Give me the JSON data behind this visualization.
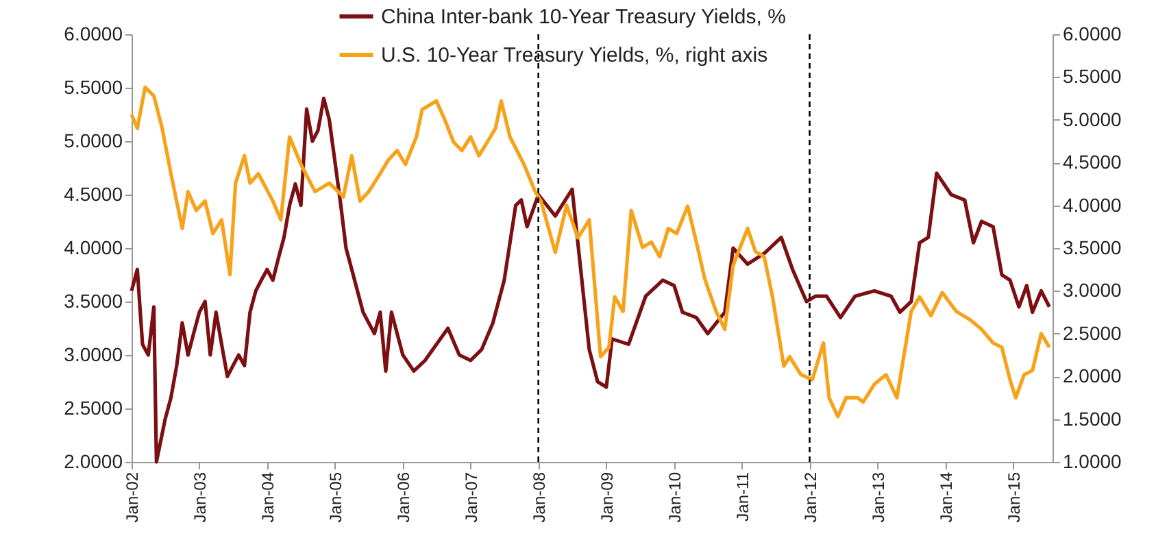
{
  "chart_data": {
    "type": "line",
    "xlim": [
      "2002-01",
      "2015-08"
    ],
    "xticks": [
      {
        "value": "2002-01",
        "label": "Jan-02"
      },
      {
        "value": "2003-01",
        "label": "Jan-03"
      },
      {
        "value": "2004-01",
        "label": "Jan-04"
      },
      {
        "value": "2005-01",
        "label": "Jan-05"
      },
      {
        "value": "2006-01",
        "label": "Jan-06"
      },
      {
        "value": "2007-01",
        "label": "Jan-07"
      },
      {
        "value": "2008-01",
        "label": "Jan-08"
      },
      {
        "value": "2009-01",
        "label": "Jan-09"
      },
      {
        "value": "2010-01",
        "label": "Jan-10"
      },
      {
        "value": "2011-01",
        "label": "Jan-11"
      },
      {
        "value": "2012-01",
        "label": "Jan-12"
      },
      {
        "value": "2013-01",
        "label": "Jan-13"
      },
      {
        "value": "2014-01",
        "label": "Jan-14"
      },
      {
        "value": "2015-01",
        "label": "Jan-15"
      }
    ],
    "ylim": [
      2,
      6
    ],
    "yticks": [
      {
        "value": 2,
        "label": "2.0000"
      },
      {
        "value": 2.5,
        "label": "2.5000"
      },
      {
        "value": 3,
        "label": "3.0000"
      },
      {
        "value": 3.5,
        "label": "3.5000"
      },
      {
        "value": 4,
        "label": "4.0000"
      },
      {
        "value": 4.5,
        "label": "4.5000"
      },
      {
        "value": 5,
        "label": "5.0000"
      },
      {
        "value": 5.5,
        "label": "5.5000"
      },
      {
        "value": 6,
        "label": "6.0000"
      }
    ],
    "y2lim": [
      1,
      6
    ],
    "y2ticks": [
      {
        "value": 1,
        "label": "1.0000"
      },
      {
        "value": 1.5,
        "label": "1.5000"
      },
      {
        "value": 2,
        "label": "2.0000"
      },
      {
        "value": 2.5,
        "label": "2.5000"
      },
      {
        "value": 3,
        "label": "3.0000"
      },
      {
        "value": 3.5,
        "label": "3.5000"
      },
      {
        "value": 4,
        "label": "4.0000"
      },
      {
        "value": 4.5,
        "label": "4.5000"
      },
      {
        "value": 5,
        "label": "5.0000"
      },
      {
        "value": 5.5,
        "label": "5.5000"
      },
      {
        "value": 6,
        "label": "6.0000"
      }
    ],
    "legend": "top",
    "grid": false,
    "line_style": "solid",
    "ref_lines": [
      {
        "axis": "x",
        "value": "2008-01",
        "line_style": "dashed",
        "color": "#000000"
      },
      {
        "axis": "x",
        "value": "2012-01",
        "line_style": "dashed",
        "color": "#000000"
      }
    ],
    "series": [
      {
        "name": "China Inter-bank 10-Year Treasury Yields, %",
        "color": "#7b0f12",
        "x": [
          "2002-01-01",
          "2002-02-01",
          "2002-03-01",
          "2002-04-01",
          "2002-05-01",
          "2002-05-15",
          "2002-07-01",
          "2002-08-01",
          "2002-09-01",
          "2002-10-01",
          "2002-11-01",
          "2002-12-01",
          "2003-01-01",
          "2003-02-01",
          "2003-03-01",
          "2003-04-01",
          "2003-05-01",
          "2003-06-01",
          "2003-07-01",
          "2003-08-01",
          "2003-09-01",
          "2003-10-01",
          "2003-11-01",
          "2003-12-01",
          "2004-01-01",
          "2004-02-01",
          "2004-03-01",
          "2004-04-01",
          "2004-05-01",
          "2004-06-01",
          "2004-07-01",
          "2004-08-01",
          "2004-09-01",
          "2004-10-01",
          "2004-11-01",
          "2004-12-01",
          "2005-01-01",
          "2005-02-01",
          "2005-03-01",
          "2005-04-01",
          "2005-06-01",
          "2005-08-01",
          "2005-09-01",
          "2005-10-01",
          "2005-11-01",
          "2006-01-01",
          "2006-03-01",
          "2006-05-01",
          "2006-07-01",
          "2006-09-01",
          "2006-11-01",
          "2007-01-01",
          "2007-03-01",
          "2007-05-01",
          "2007-07-01",
          "2007-09-01",
          "2007-10-01",
          "2007-11-01",
          "2008-01-01",
          "2008-04-01",
          "2008-07-01",
          "2008-10-01",
          "2008-11-15",
          "2009-01-01",
          "2009-02-01",
          "2009-05-01",
          "2009-08-01",
          "2009-11-01",
          "2010-01-01",
          "2010-02-15",
          "2010-05-01",
          "2010-07-01",
          "2010-10-01",
          "2010-11-15",
          "2011-02-01",
          "2011-05-01",
          "2011-08-01",
          "2011-10-01",
          "2011-12-15",
          "2012-02-01",
          "2012-04-01",
          "2012-06-15",
          "2012-09-01",
          "2012-12-15",
          "2013-03-15",
          "2013-05-01",
          "2013-07-01",
          "2013-08-15",
          "2013-10-01",
          "2013-11-15",
          "2014-02-01",
          "2014-04-15",
          "2014-06-01",
          "2014-07-15",
          "2014-09-15",
          "2014-11-01",
          "2014-12-15",
          "2015-02-01",
          "2015-03-15",
          "2015-04-15",
          "2015-06-01",
          "2015-07-15"
        ],
        "values": [
          3.6,
          3.8,
          3.1,
          3.0,
          3.45,
          2.0,
          2.4,
          2.6,
          2.9,
          3.3,
          3.0,
          3.2,
          3.4,
          3.5,
          3.0,
          3.4,
          3.1,
          2.8,
          2.9,
          3.0,
          2.9,
          3.4,
          3.6,
          3.7,
          3.8,
          3.7,
          3.9,
          4.1,
          4.4,
          4.6,
          4.4,
          5.3,
          5.0,
          5.1,
          5.4,
          5.2,
          4.8,
          4.4,
          4.0,
          3.8,
          3.4,
          3.2,
          3.4,
          2.85,
          3.4,
          3.0,
          2.85,
          2.95,
          3.1,
          3.25,
          3.0,
          2.95,
          3.05,
          3.3,
          3.7,
          4.4,
          4.45,
          4.2,
          4.5,
          4.3,
          4.55,
          3.05,
          2.75,
          2.7,
          3.15,
          3.1,
          3.55,
          3.7,
          3.65,
          3.4,
          3.35,
          3.2,
          3.4,
          4.0,
          3.85,
          3.95,
          4.1,
          3.8,
          3.5,
          3.55,
          3.55,
          3.35,
          3.55,
          3.6,
          3.55,
          3.4,
          3.5,
          4.05,
          4.1,
          4.7,
          4.5,
          4.45,
          4.05,
          4.25,
          4.2,
          3.75,
          3.7,
          3.45,
          3.65,
          3.4,
          3.6,
          3.45
        ]
      },
      {
        "name": "U.S. 10-Year Treasury Yields, %, right axis",
        "color": "#f7a21b",
        "axis": "y2",
        "x": [
          "2002-01-01",
          "2002-02-01",
          "2002-03-15",
          "2002-05-01",
          "2002-06-15",
          "2002-08-01",
          "2002-10-01",
          "2002-11-01",
          "2002-12-15",
          "2003-02-01",
          "2003-03-15",
          "2003-05-01",
          "2003-06-15",
          "2003-07-15",
          "2003-09-01",
          "2003-10-01",
          "2003-11-15",
          "2004-02-01",
          "2004-03-15",
          "2004-05-01",
          "2004-07-01",
          "2004-09-15",
          "2004-12-01",
          "2005-02-15",
          "2005-04-01",
          "2005-05-15",
          "2005-07-01",
          "2005-09-01",
          "2005-10-15",
          "2005-12-01",
          "2006-01-15",
          "2006-03-15",
          "2006-04-15",
          "2006-07-01",
          "2006-08-15",
          "2006-10-01",
          "2006-11-15",
          "2007-01-01",
          "2007-02-15",
          "2007-04-01",
          "2007-05-15",
          "2007-06-15",
          "2007-08-01",
          "2007-10-15",
          "2007-12-15",
          "2008-01-15",
          "2008-04-01",
          "2008-06-01",
          "2008-08-01",
          "2008-10-01",
          "2008-12-01",
          "2009-01-15",
          "2009-02-15",
          "2009-04-01",
          "2009-05-15",
          "2009-07-15",
          "2009-09-01",
          "2009-10-15",
          "2009-12-01",
          "2010-01-15",
          "2010-03-15",
          "2010-05-01",
          "2010-06-15",
          "2010-08-15",
          "2010-10-01",
          "2010-11-15",
          "2011-02-01",
          "2011-03-15",
          "2011-05-01",
          "2011-06-15",
          "2011-08-15",
          "2011-09-15",
          "2011-11-15",
          "2012-01-15",
          "2012-03-15",
          "2012-04-15",
          "2012-06-01",
          "2012-07-15",
          "2012-09-15",
          "2012-10-15",
          "2012-12-15",
          "2013-02-15",
          "2013-04-15",
          "2013-07-01",
          "2013-08-15",
          "2013-10-15",
          "2013-12-15",
          "2014-03-01",
          "2014-05-15",
          "2014-07-15",
          "2014-09-15",
          "2014-11-01",
          "2014-12-15",
          "2015-01-15",
          "2015-03-01",
          "2015-04-15",
          "2015-06-01",
          "2015-07-15"
        ],
        "values": [
          5.06,
          4.9,
          5.38,
          5.28,
          4.9,
          4.37,
          3.73,
          4.16,
          3.94,
          4.05,
          3.67,
          3.83,
          3.19,
          4.26,
          4.58,
          4.26,
          4.37,
          4.05,
          3.83,
          4.8,
          4.48,
          4.16,
          4.26,
          4.1,
          4.58,
          4.05,
          4.16,
          4.37,
          4.53,
          4.64,
          4.48,
          4.8,
          5.12,
          5.22,
          5.0,
          4.74,
          4.64,
          4.8,
          4.58,
          4.74,
          4.9,
          5.22,
          4.8,
          4.48,
          4.16,
          4.05,
          3.45,
          4.0,
          3.62,
          3.83,
          2.23,
          2.34,
          2.93,
          2.76,
          3.94,
          3.51,
          3.57,
          3.4,
          3.73,
          3.67,
          3.99,
          3.57,
          3.14,
          2.76,
          2.55,
          3.3,
          3.73,
          3.46,
          3.4,
          2.93,
          2.12,
          2.23,
          2.02,
          1.96,
          2.39,
          1.75,
          1.53,
          1.75,
          1.75,
          1.7,
          1.91,
          2.02,
          1.75,
          2.76,
          2.93,
          2.71,
          2.98,
          2.76,
          2.66,
          2.55,
          2.39,
          2.34,
          1.96,
          1.75,
          2.02,
          2.07,
          2.5,
          2.34
        ]
      }
    ]
  }
}
